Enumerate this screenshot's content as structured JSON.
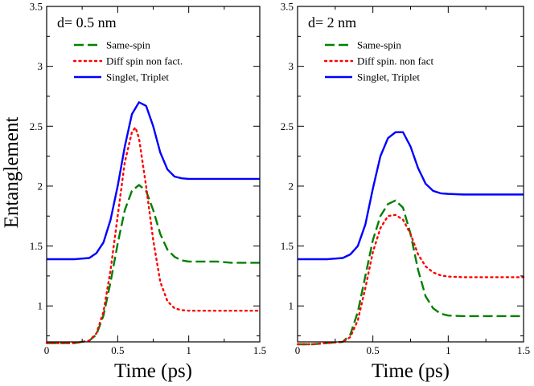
{
  "figure": {
    "ylabel": "Entanglement"
  },
  "chart_data": [
    {
      "type": "line",
      "panel_label": "d= 0.5 nm",
      "xlabel": "Time (ps)",
      "ylabel": "Entanglement",
      "xlim": [
        0,
        1.5
      ],
      "ylim": [
        0.7,
        3.5
      ],
      "xticks": [
        "0",
        "0.5",
        "1",
        "1.5"
      ],
      "yticks": [
        "1",
        "1.5",
        "2",
        "2.5",
        "3",
        "3.5"
      ],
      "xtick_values": [
        0,
        0.5,
        1,
        1.5
      ],
      "ytick_values": [
        1,
        1.5,
        2,
        2.5,
        3,
        3.5
      ],
      "legend_position": "top-left",
      "series": [
        {
          "name": "Same-spin",
          "color": "#008000",
          "style": "dash",
          "x": [
            0,
            0.1,
            0.2,
            0.3,
            0.35,
            0.4,
            0.45,
            0.5,
            0.55,
            0.6,
            0.65,
            0.7,
            0.75,
            0.8,
            0.85,
            0.9,
            0.95,
            1.0,
            1.1,
            1.2,
            1.3,
            1.4,
            1.5
          ],
          "y": [
            0.69,
            0.69,
            0.69,
            0.71,
            0.76,
            0.92,
            1.2,
            1.52,
            1.8,
            1.96,
            2.01,
            1.96,
            1.8,
            1.6,
            1.47,
            1.41,
            1.38,
            1.37,
            1.37,
            1.37,
            1.36,
            1.36,
            1.36
          ]
        },
        {
          "name": "Diff spin non fact.",
          "color": "#ff0000",
          "style": "dot",
          "x": [
            0,
            0.1,
            0.2,
            0.3,
            0.35,
            0.4,
            0.45,
            0.5,
            0.55,
            0.6,
            0.625,
            0.65,
            0.7,
            0.75,
            0.8,
            0.85,
            0.9,
            0.95,
            1.0,
            1.1,
            1.2,
            1.3,
            1.4,
            1.5
          ],
          "y": [
            0.69,
            0.69,
            0.69,
            0.71,
            0.77,
            0.95,
            1.3,
            1.75,
            2.2,
            2.45,
            2.49,
            2.4,
            2.0,
            1.55,
            1.2,
            1.04,
            0.98,
            0.965,
            0.96,
            0.96,
            0.96,
            0.96,
            0.96,
            0.96
          ]
        },
        {
          "name": "Singlet, Triplet",
          "color": "#0000ff",
          "style": "solid",
          "x": [
            0,
            0.1,
            0.2,
            0.3,
            0.35,
            0.4,
            0.45,
            0.5,
            0.55,
            0.6,
            0.65,
            0.7,
            0.75,
            0.8,
            0.85,
            0.9,
            0.95,
            1.0,
            1.1,
            1.2,
            1.3,
            1.4,
            1.5
          ],
          "y": [
            1.39,
            1.39,
            1.39,
            1.4,
            1.44,
            1.53,
            1.72,
            2.0,
            2.33,
            2.6,
            2.7,
            2.67,
            2.5,
            2.28,
            2.14,
            2.08,
            2.065,
            2.06,
            2.06,
            2.06,
            2.06,
            2.06,
            2.06
          ]
        }
      ]
    },
    {
      "type": "line",
      "panel_label": "d= 2 nm",
      "xlabel": "Time (ps)",
      "ylabel": "",
      "xlim": [
        0,
        1.5
      ],
      "ylim": [
        0.7,
        3.5
      ],
      "xticks": [
        "0",
        "0.5",
        "1",
        "1.5"
      ],
      "yticks": [
        "1",
        "1.5",
        "2",
        "2.5",
        "3",
        "3.5"
      ],
      "xtick_values": [
        0,
        0.5,
        1,
        1.5
      ],
      "ytick_values": [
        1,
        1.5,
        2,
        2.5,
        3,
        3.5
      ],
      "legend_position": "top-left",
      "series": [
        {
          "name": "Same-spin",
          "color": "#008000",
          "style": "dash",
          "x": [
            0,
            0.1,
            0.2,
            0.3,
            0.35,
            0.4,
            0.45,
            0.5,
            0.55,
            0.6,
            0.65,
            0.7,
            0.75,
            0.8,
            0.85,
            0.9,
            0.95,
            1.0,
            1.1,
            1.2,
            1.3,
            1.4,
            1.5
          ],
          "y": [
            0.68,
            0.68,
            0.69,
            0.7,
            0.76,
            0.95,
            1.25,
            1.55,
            1.75,
            1.85,
            1.88,
            1.82,
            1.6,
            1.3,
            1.08,
            0.98,
            0.935,
            0.92,
            0.915,
            0.915,
            0.915,
            0.915,
            0.915
          ]
        },
        {
          "name": "Diff spin. non fact",
          "color": "#ff0000",
          "style": "dot",
          "x": [
            0,
            0.1,
            0.2,
            0.3,
            0.35,
            0.4,
            0.45,
            0.5,
            0.55,
            0.6,
            0.65,
            0.7,
            0.75,
            0.8,
            0.85,
            0.9,
            0.95,
            1.0,
            1.1,
            1.2,
            1.3,
            1.4,
            1.5
          ],
          "y": [
            0.68,
            0.68,
            0.69,
            0.7,
            0.74,
            0.88,
            1.15,
            1.45,
            1.65,
            1.75,
            1.76,
            1.72,
            1.6,
            1.43,
            1.33,
            1.28,
            1.255,
            1.245,
            1.24,
            1.24,
            1.24,
            1.24,
            1.24
          ]
        },
        {
          "name": "Singlet, Triplet",
          "color": "#0000ff",
          "style": "solid",
          "x": [
            0,
            0.1,
            0.2,
            0.3,
            0.35,
            0.4,
            0.45,
            0.5,
            0.55,
            0.6,
            0.65,
            0.7,
            0.75,
            0.8,
            0.85,
            0.9,
            0.95,
            1.0,
            1.1,
            1.2,
            1.3,
            1.4,
            1.5
          ],
          "y": [
            1.39,
            1.39,
            1.39,
            1.4,
            1.43,
            1.5,
            1.68,
            1.98,
            2.25,
            2.4,
            2.45,
            2.45,
            2.33,
            2.15,
            2.02,
            1.96,
            1.94,
            1.935,
            1.93,
            1.93,
            1.93,
            1.93,
            1.93
          ]
        }
      ]
    }
  ]
}
